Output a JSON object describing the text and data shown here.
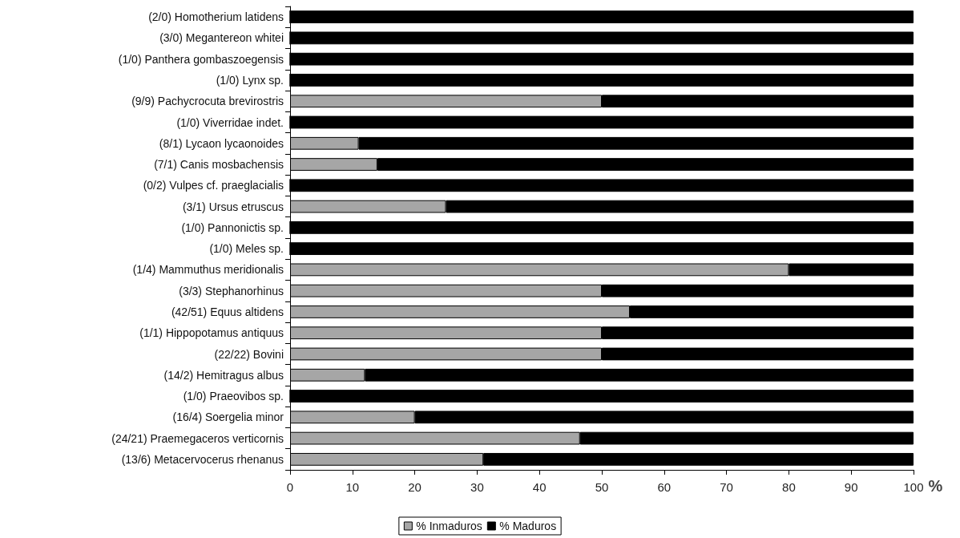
{
  "chart_data": {
    "type": "bar",
    "orientation": "horizontal",
    "stacked": true,
    "xlabel": "%",
    "categories": [
      "(2/0) Homotherium latidens",
      "(3/0) Megantereon whitei",
      "(1/0) Panthera gombaszoegensis",
      "(1/0) Lynx sp.",
      "(9/9) Pachycrocuta brevirostris",
      "(1/0) Viverridae indet.",
      "(8/1) Lycaon lycaonoides",
      "(7/1) Canis mosbachensis",
      "(0/2) Vulpes cf. praeglacialis",
      "(3/1) Ursus etruscus",
      "(1/0) Pannonictis sp.",
      "(1/0) Meles sp.",
      "(1/4) Mammuthus meridionalis",
      "(3/3) Stephanorhinus",
      "(42/51) Equus altidens",
      "(1/1) Hippopotamus antiquus",
      "(22/22) Bovini",
      "(14/2) Hemitragus albus",
      "(1/0) Praeovibos sp.",
      "(16/4) Soergelia minor",
      "(24/21) Praemegaceros verticornis",
      "(13/6) Metacervocerus rhenanus"
    ],
    "series": [
      {
        "name": "% Inmaduros",
        "color": "#a6a6a6",
        "values": [
          0,
          0,
          0,
          0,
          50,
          0,
          11,
          14,
          0,
          25,
          0,
          0,
          80,
          50,
          54.5,
          50,
          50,
          12,
          0,
          20,
          46.5,
          31
        ]
      },
      {
        "name": "% Maduros",
        "color": "#000000",
        "values": [
          100,
          100,
          100,
          100,
          50,
          100,
          89,
          86,
          100,
          75,
          100,
          100,
          20,
          50,
          45.5,
          50,
          50,
          88,
          100,
          80,
          53.5,
          69
        ]
      }
    ],
    "xlim": [
      0,
      100
    ],
    "xticks": [
      0,
      10,
      20,
      30,
      40,
      50,
      60,
      70,
      80,
      90,
      100
    ],
    "grid": false,
    "legend": "bottom"
  }
}
